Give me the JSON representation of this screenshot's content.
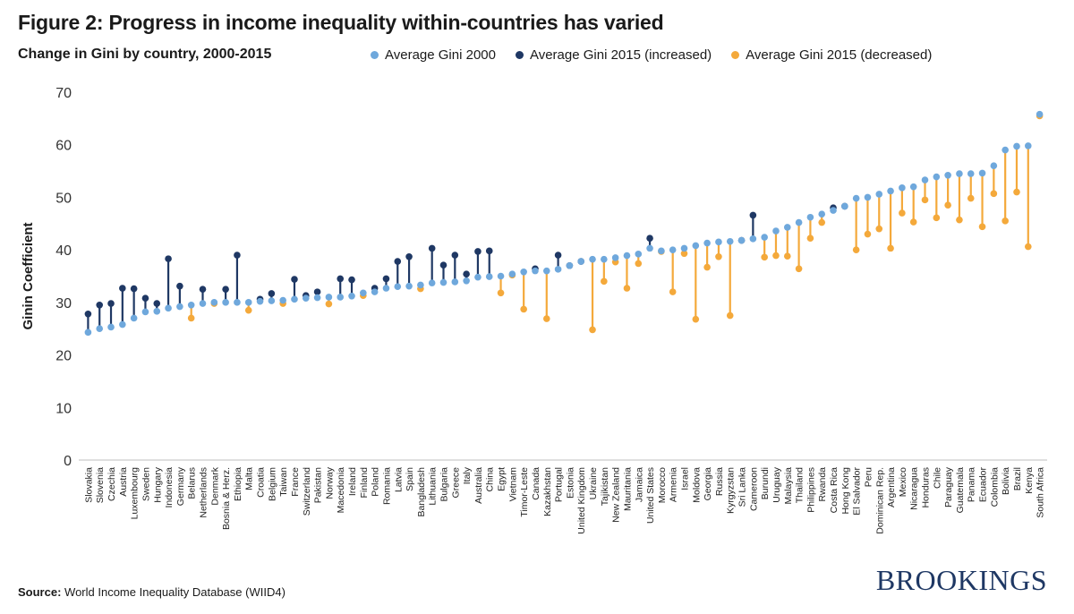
{
  "figure": {
    "title": "Figure 2: Progress in income inequality within-countries has varied",
    "subtitle": "Change in Gini by country, 2000-2015"
  },
  "legend": {
    "items": [
      {
        "label": "Average Gini 2000",
        "color": "#6fa8dc"
      },
      {
        "label": "Average Gini 2015 (increased)",
        "color": "#1f3864"
      },
      {
        "label": "Average Gini 2015 (decreased)",
        "color": "#f4a93b"
      }
    ]
  },
  "source": {
    "label": "Source:",
    "text": "World Income Inequality Database (WIID4)"
  },
  "brand": "BROOKINGS",
  "chart_data": {
    "type": "scatter",
    "ylabel": "Ginin Coefficient",
    "xlabel": "",
    "ylim": [
      0,
      70
    ],
    "yticks": [
      0,
      10,
      20,
      30,
      40,
      50,
      60,
      70
    ],
    "grid": false,
    "legend_position": "top-right",
    "colors": {
      "gini2000": "#6fa8dc",
      "increased": "#1f3864",
      "decreased": "#f4a93b"
    },
    "countries": [
      {
        "name": "Slovakia",
        "gini2000": 24.3,
        "gini2015": 27.8
      },
      {
        "name": "Slovenia",
        "gini2000": 25.0,
        "gini2015": 29.5
      },
      {
        "name": "Czechia",
        "gini2000": 25.3,
        "gini2015": 29.8
      },
      {
        "name": "Austria",
        "gini2000": 25.8,
        "gini2015": 32.7
      },
      {
        "name": "Luxembourg",
        "gini2000": 27.0,
        "gini2015": 32.6
      },
      {
        "name": "Sweden",
        "gini2000": 28.2,
        "gini2015": 30.8
      },
      {
        "name": "Hungary",
        "gini2000": 28.3,
        "gini2015": 29.8
      },
      {
        "name": "Indonesia",
        "gini2000": 28.9,
        "gini2015": 38.3
      },
      {
        "name": "Germany",
        "gini2000": 29.2,
        "gini2015": 33.1
      },
      {
        "name": "Belarus",
        "gini2000": 29.5,
        "gini2015": 27.0
      },
      {
        "name": "Netherlands",
        "gini2000": 29.8,
        "gini2015": 32.5
      },
      {
        "name": "Denmark",
        "gini2000": 30.0,
        "gini2015": 29.8
      },
      {
        "name": "Bosnia & Herz.",
        "gini2000": 30.0,
        "gini2015": 32.5
      },
      {
        "name": "Ethiopia",
        "gini2000": 30.0,
        "gini2015": 39.0
      },
      {
        "name": "Malta",
        "gini2000": 30.0,
        "gini2015": 28.5
      },
      {
        "name": "Croatia",
        "gini2000": 30.2,
        "gini2015": 30.6
      },
      {
        "name": "Belgium",
        "gini2000": 30.3,
        "gini2015": 31.7
      },
      {
        "name": "Taiwan",
        "gini2000": 30.4,
        "gini2015": 29.8
      },
      {
        "name": "France",
        "gini2000": 30.6,
        "gini2015": 34.4
      },
      {
        "name": "Switzerland",
        "gini2000": 30.8,
        "gini2015": 31.3
      },
      {
        "name": "Pakistan",
        "gini2000": 30.9,
        "gini2015": 32.0
      },
      {
        "name": "Norway",
        "gini2000": 31.0,
        "gini2015": 29.7
      },
      {
        "name": "Macedonia",
        "gini2000": 31.0,
        "gini2015": 34.5
      },
      {
        "name": "Ireland",
        "gini2000": 31.2,
        "gini2015": 34.3
      },
      {
        "name": "Finland",
        "gini2000": 31.8,
        "gini2015": 31.3
      },
      {
        "name": "Poland",
        "gini2000": 32.0,
        "gini2015": 32.7
      },
      {
        "name": "Romania",
        "gini2000": 32.7,
        "gini2015": 34.5
      },
      {
        "name": "Latvia",
        "gini2000": 33.0,
        "gini2015": 37.8
      },
      {
        "name": "Spain",
        "gini2000": 33.1,
        "gini2015": 38.7
      },
      {
        "name": "Bangladesh",
        "gini2000": 33.3,
        "gini2015": 32.6
      },
      {
        "name": "Lithuania",
        "gini2000": 33.7,
        "gini2015": 40.3
      },
      {
        "name": "Bulgaria",
        "gini2000": 33.8,
        "gini2015": 37.1
      },
      {
        "name": "Greece",
        "gini2000": 33.9,
        "gini2015": 39.0
      },
      {
        "name": "Italy",
        "gini2000": 34.1,
        "gini2015": 35.4
      },
      {
        "name": "Australia",
        "gini2000": 34.8,
        "gini2015": 39.7
      },
      {
        "name": "China",
        "gini2000": 34.9,
        "gini2015": 39.8
      },
      {
        "name": "Egypt",
        "gini2000": 35.0,
        "gini2015": 31.8
      },
      {
        "name": "Vietnam",
        "gini2000": 35.4,
        "gini2015": 35.2
      },
      {
        "name": "Timor-Leste",
        "gini2000": 35.8,
        "gini2015": 28.7
      },
      {
        "name": "Canada",
        "gini2000": 36.0,
        "gini2015": 36.4
      },
      {
        "name": "Kazakhstan",
        "gini2000": 36.0,
        "gini2015": 26.9
      },
      {
        "name": "Portugal",
        "gini2000": 36.3,
        "gini2015": 39.0
      },
      {
        "name": "Estonia",
        "gini2000": 37.0,
        "gini2015": 37.0
      },
      {
        "name": "United Kingdom",
        "gini2000": 37.8,
        "gini2015": 37.8
      },
      {
        "name": "Ukraine",
        "gini2000": 38.2,
        "gini2015": 24.8
      },
      {
        "name": "Tajikistan",
        "gini2000": 38.2,
        "gini2015": 34.0
      },
      {
        "name": "New Zealand",
        "gini2000": 38.5,
        "gini2015": 37.7
      },
      {
        "name": "Mauritania",
        "gini2000": 38.9,
        "gini2015": 32.7
      },
      {
        "name": "Jamaica",
        "gini2000": 39.2,
        "gini2015": 37.4
      },
      {
        "name": "United States",
        "gini2000": 40.3,
        "gini2015": 42.2
      },
      {
        "name": "Morocco",
        "gini2000": 39.8,
        "gini2015": 39.7
      },
      {
        "name": "Armenia",
        "gini2000": 40.0,
        "gini2015": 32.0
      },
      {
        "name": "Israel",
        "gini2000": 40.3,
        "gini2015": 39.3
      },
      {
        "name": "Moldova",
        "gini2000": 40.8,
        "gini2015": 26.8
      },
      {
        "name": "Georgia",
        "gini2000": 41.3,
        "gini2015": 36.7
      },
      {
        "name": "Russia",
        "gini2000": 41.5,
        "gini2015": 38.7
      },
      {
        "name": "Kyrgyzstan",
        "gini2000": 41.6,
        "gini2015": 27.5
      },
      {
        "name": "Sri Lanka",
        "gini2000": 41.8,
        "gini2015": 41.8
      },
      {
        "name": "Cameroon",
        "gini2000": 42.1,
        "gini2015": 46.6
      },
      {
        "name": "Burundi",
        "gini2000": 42.4,
        "gini2015": 38.6
      },
      {
        "name": "Uruguay",
        "gini2000": 43.6,
        "gini2015": 38.9
      },
      {
        "name": "Malaysia",
        "gini2000": 44.3,
        "gini2015": 38.8
      },
      {
        "name": "Thailand",
        "gini2000": 45.2,
        "gini2015": 36.4
      },
      {
        "name": "Philippines",
        "gini2000": 46.2,
        "gini2015": 42.2
      },
      {
        "name": "Rwanda",
        "gini2000": 46.8,
        "gini2015": 45.2
      },
      {
        "name": "Costa Rica",
        "gini2000": 47.5,
        "gini2015": 48.0
      },
      {
        "name": "Hong Kong",
        "gini2000": 48.3,
        "gini2015": 48.3
      },
      {
        "name": "El Salvador",
        "gini2000": 49.8,
        "gini2015": 40.0
      },
      {
        "name": "Peru",
        "gini2000": 50.0,
        "gini2015": 43.0
      },
      {
        "name": "Dominican Rep.",
        "gini2000": 50.6,
        "gini2015": 44.0
      },
      {
        "name": "Argentina",
        "gini2000": 51.2,
        "gini2015": 40.3
      },
      {
        "name": "Mexico",
        "gini2000": 51.8,
        "gini2015": 47.0
      },
      {
        "name": "Nicaragua",
        "gini2000": 52.0,
        "gini2015": 45.3
      },
      {
        "name": "Honduras",
        "gini2000": 53.3,
        "gini2015": 49.5
      },
      {
        "name": "Chile",
        "gini2000": 53.9,
        "gini2015": 46.1
      },
      {
        "name": "Paraguay",
        "gini2000": 54.2,
        "gini2015": 48.5
      },
      {
        "name": "Guatemala",
        "gini2000": 54.5,
        "gini2015": 45.7
      },
      {
        "name": "Panama",
        "gini2000": 54.5,
        "gini2015": 49.8
      },
      {
        "name": "Ecuador",
        "gini2000": 54.6,
        "gini2015": 44.4
      },
      {
        "name": "Colombia",
        "gini2000": 56.0,
        "gini2015": 50.7
      },
      {
        "name": "Bolivia",
        "gini2000": 59.0,
        "gini2015": 45.5
      },
      {
        "name": "Brazil",
        "gini2000": 59.7,
        "gini2015": 51.0
      },
      {
        "name": "Kenya",
        "gini2000": 59.8,
        "gini2015": 40.6
      },
      {
        "name": "South Africa",
        "gini2000": 65.8,
        "gini2015": 65.5
      }
    ]
  }
}
